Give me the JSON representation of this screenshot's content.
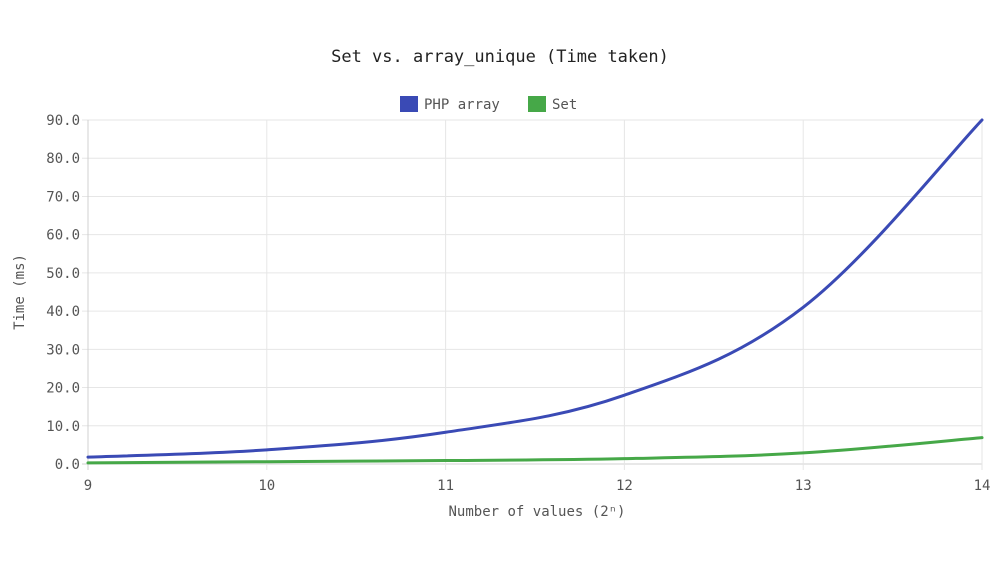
{
  "chart_data": {
    "type": "line",
    "title": "Set vs. array_unique (Time taken)",
    "xlabel": "Number of values (2ⁿ)",
    "ylabel": "Time (ms)",
    "x": [
      9,
      10,
      11,
      12,
      13,
      14
    ],
    "x_ticks": [
      "9",
      "10",
      "11",
      "12",
      "13",
      "14"
    ],
    "y_ticks": [
      "0.0",
      "10.0",
      "20.0",
      "30.0",
      "40.0",
      "50.0",
      "60.0",
      "70.0",
      "80.0",
      "90.0"
    ],
    "xlim": [
      9,
      14
    ],
    "ylim": [
      0,
      90
    ],
    "grid": true,
    "legend_position": "top-center",
    "series": [
      {
        "name": "PHP array",
        "color": "#3a4ab5",
        "values": [
          1.8,
          3.7,
          8.3,
          18.0,
          41.0,
          90.0
        ]
      },
      {
        "name": "Set",
        "color": "#46a848",
        "values": [
          0.3,
          0.6,
          0.9,
          1.4,
          2.9,
          6.9
        ]
      }
    ]
  }
}
